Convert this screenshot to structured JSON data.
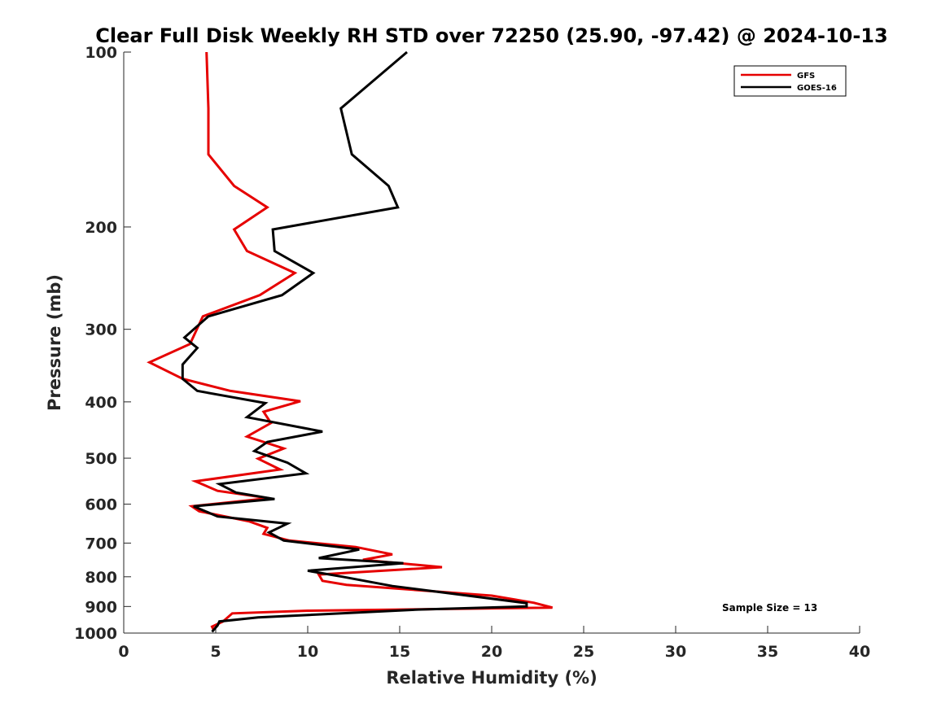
{
  "chart_data": {
    "type": "line",
    "title": "Clear Full Disk Weekly RH STD over 72250 (25.90, -97.42) @ 2024-10-13",
    "xlabel": "Relative Humidity (%)",
    "ylabel": "Pressure (mb)",
    "xlim": [
      0,
      40
    ],
    "ylim": [
      1000,
      100
    ],
    "yscale": "log",
    "xticks": [
      0,
      5,
      10,
      15,
      20,
      25,
      30,
      35,
      40
    ],
    "yticks": [
      100,
      200,
      300,
      400,
      500,
      600,
      700,
      800,
      900,
      1000
    ],
    "grid": false,
    "legend_position": "top-right",
    "annotation": "Sample Size = 13",
    "series": [
      {
        "name": "GFS",
        "color": "#e60000",
        "points": [
          [
            4.5,
            100
          ],
          [
            4.6,
            125
          ],
          [
            4.6,
            150
          ],
          [
            6.0,
            170
          ],
          [
            7.8,
            185
          ],
          [
            6.0,
            202
          ],
          [
            6.7,
            220
          ],
          [
            9.3,
            240
          ],
          [
            7.4,
            262
          ],
          [
            4.3,
            285
          ],
          [
            3.6,
            318
          ],
          [
            1.4,
            342
          ],
          [
            3.2,
            365
          ],
          [
            5.8,
            383
          ],
          [
            9.6,
            399
          ],
          [
            7.6,
            416
          ],
          [
            8.0,
            435
          ],
          [
            6.7,
            459
          ],
          [
            8.7,
            481
          ],
          [
            7.3,
            501
          ],
          [
            8.5,
            523
          ],
          [
            3.9,
            548
          ],
          [
            5.1,
            569
          ],
          [
            7.9,
            586
          ],
          [
            3.7,
            605
          ],
          [
            4.1,
            617
          ],
          [
            6.8,
            642
          ],
          [
            7.8,
            659
          ],
          [
            7.6,
            675
          ],
          [
            9.0,
            693
          ],
          [
            12.6,
            711
          ],
          [
            14.6,
            732
          ],
          [
            13.0,
            748
          ],
          [
            17.3,
            770
          ],
          [
            10.6,
            793
          ],
          [
            10.8,
            813
          ],
          [
            12.1,
            826
          ],
          [
            20.0,
            862
          ],
          [
            22.3,
            887
          ],
          [
            23.3,
            904
          ],
          [
            10.0,
            915
          ],
          [
            5.9,
            925
          ],
          [
            5.4,
            955
          ],
          [
            4.8,
            975
          ],
          [
            4.9,
            990
          ]
        ]
      },
      {
        "name": "GOES-16",
        "color": "#000000",
        "points": [
          [
            15.4,
            100
          ],
          [
            11.8,
            125
          ],
          [
            12.4,
            150
          ],
          [
            14.4,
            170
          ],
          [
            14.9,
            185
          ],
          [
            8.1,
            202
          ],
          [
            8.2,
            220
          ],
          [
            10.3,
            240
          ],
          [
            8.6,
            262
          ],
          [
            4.6,
            285
          ],
          [
            3.3,
            310
          ],
          [
            4.0,
            323
          ],
          [
            3.2,
            345
          ],
          [
            3.2,
            365
          ],
          [
            4.0,
            383
          ],
          [
            7.7,
            402
          ],
          [
            6.7,
            425
          ],
          [
            10.8,
            450
          ],
          [
            7.8,
            469
          ],
          [
            7.1,
            486
          ],
          [
            8.9,
            509
          ],
          [
            9.9,
            531
          ],
          [
            5.2,
            554
          ],
          [
            6.1,
            573
          ],
          [
            8.2,
            588
          ],
          [
            3.8,
            605
          ],
          [
            5.1,
            630
          ],
          [
            8.9,
            648
          ],
          [
            7.9,
            671
          ],
          [
            8.7,
            693
          ],
          [
            12.8,
            718
          ],
          [
            10.6,
            743
          ],
          [
            15.2,
            758
          ],
          [
            10.0,
            781
          ],
          [
            11.9,
            800
          ],
          [
            14.6,
            830
          ],
          [
            21.9,
            888
          ],
          [
            21.9,
            900
          ],
          [
            16.0,
            911
          ],
          [
            7.3,
            940
          ],
          [
            5.2,
            955
          ],
          [
            5.1,
            970
          ],
          [
            4.8,
            995
          ]
        ]
      }
    ]
  }
}
